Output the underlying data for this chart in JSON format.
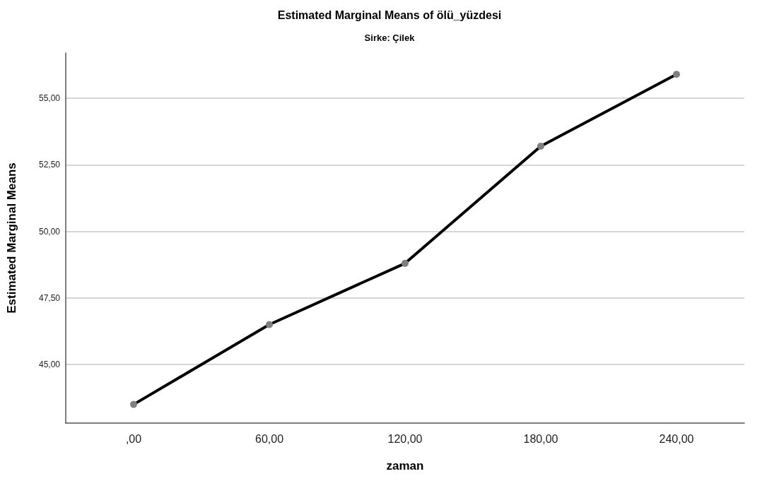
{
  "chart_data": {
    "type": "line",
    "title": "Estimated Marginal Means of ölü_yüzdesi",
    "subtitle": "Sirke: Çilek",
    "xlabel": "zaman",
    "ylabel": "Estimated Marginal Means",
    "categories": [
      ",00",
      "60,00",
      "120,00",
      "180,00",
      "240,00"
    ],
    "series": [
      {
        "color": "#000000",
        "values": [
          43.5,
          46.5,
          48.8,
          53.2,
          55.9
        ]
      }
    ],
    "marker": "circle",
    "line_style": "solid",
    "grid": "y",
    "ylim": [
      42.8,
      56.7
    ],
    "yticks": [
      {
        "value": 45,
        "label": "45,00"
      },
      {
        "value": 47.5,
        "label": "47,50"
      },
      {
        "value": 50,
        "label": "50,00"
      },
      {
        "value": 52.5,
        "label": "52,50"
      },
      {
        "value": 55,
        "label": "55,00"
      }
    ]
  }
}
